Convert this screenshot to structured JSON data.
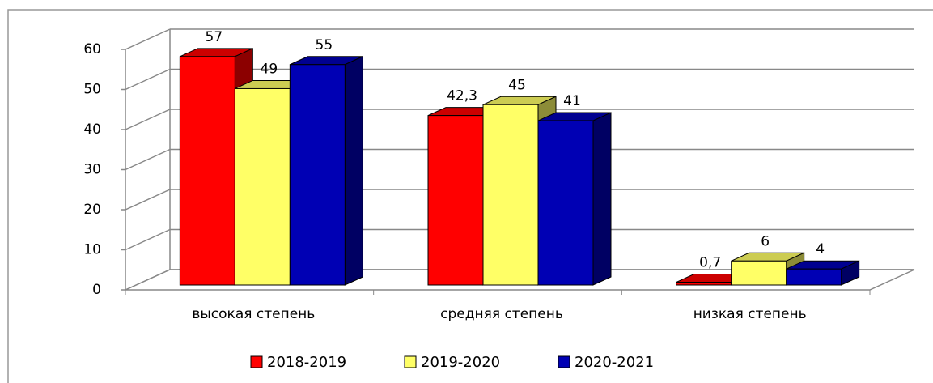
{
  "chart_data": {
    "type": "bar",
    "categories": [
      "высокая степень",
      "средняя степень",
      "низкая степень"
    ],
    "series": [
      {
        "name": "2018-2019",
        "color": "#ff0000",
        "values": [
          57,
          42.3,
          0.7
        ],
        "value_labels": [
          "57",
          "42,3",
          "0,7"
        ]
      },
      {
        "name": "2019-2020",
        "color": "#ffff66",
        "values": [
          49,
          45,
          6
        ]
      },
      {
        "name": "2020-2021",
        "color": "#0000b4",
        "values": [
          55,
          41,
          4
        ]
      }
    ],
    "ylim": [
      0,
      60
    ],
    "yticks": [
      0,
      10,
      20,
      30,
      40,
      50,
      60
    ],
    "grid": true,
    "legend": "bottom"
  }
}
